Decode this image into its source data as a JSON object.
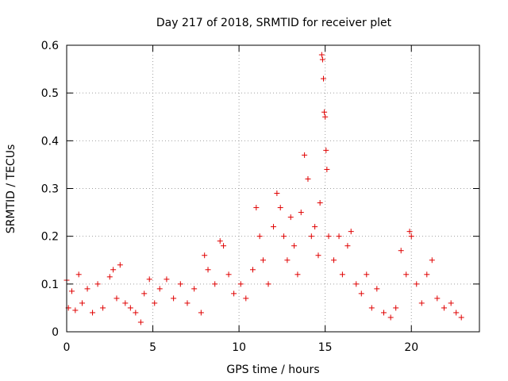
{
  "chart_data": {
    "type": "scatter",
    "title": "Day 217 of 2018, SRMTID for receiver plet",
    "xlabel": "GPS time / hours",
    "ylabel": "SRMTID / TECUs",
    "xlim": [
      0,
      23.95
    ],
    "ylim": [
      0,
      0.6
    ],
    "xticks": [
      0,
      5,
      10,
      15,
      20
    ],
    "yticks": [
      0,
      0.1,
      0.2,
      0.3,
      0.4,
      0.5,
      0.6
    ],
    "xtick_labels": [
      "0",
      "5",
      "10",
      "15",
      "20"
    ],
    "ytick_labels": [
      "0",
      "0.1",
      "0.2",
      "0.3",
      "0.4",
      "0.5",
      "0.6"
    ],
    "grid": true,
    "marker": "+",
    "color": "#e00000",
    "x_extent": [
      0,
      22.9
    ],
    "baseline_band": [
      0.02,
      0.1
    ],
    "active_period_hours": [
      8,
      16.5
    ],
    "secondary_peak_hours": [
      19.5,
      20.5
    ],
    "series": [
      {
        "name": "SRMTID",
        "points": [
          [
            0.0,
            0.108
          ],
          [
            0.1,
            0.05
          ],
          [
            0.3,
            0.085
          ],
          [
            0.5,
            0.045
          ],
          [
            0.7,
            0.12
          ],
          [
            0.9,
            0.06
          ],
          [
            1.2,
            0.09
          ],
          [
            1.5,
            0.04
          ],
          [
            1.8,
            0.1
          ],
          [
            2.1,
            0.05
          ],
          [
            2.5,
            0.115
          ],
          [
            2.7,
            0.13
          ],
          [
            2.9,
            0.07
          ],
          [
            3.1,
            0.14
          ],
          [
            3.4,
            0.06
          ],
          [
            3.7,
            0.05
          ],
          [
            4.0,
            0.04
          ],
          [
            4.3,
            0.02
          ],
          [
            4.5,
            0.08
          ],
          [
            4.8,
            0.11
          ],
          [
            5.1,
            0.06
          ],
          [
            5.4,
            0.09
          ],
          [
            5.8,
            0.11
          ],
          [
            6.2,
            0.07
          ],
          [
            6.6,
            0.1
          ],
          [
            7.0,
            0.06
          ],
          [
            7.4,
            0.09
          ],
          [
            7.8,
            0.04
          ],
          [
            8.0,
            0.16
          ],
          [
            8.2,
            0.13
          ],
          [
            8.6,
            0.1
          ],
          [
            8.9,
            0.19
          ],
          [
            9.1,
            0.18
          ],
          [
            9.4,
            0.12
          ],
          [
            9.7,
            0.08
          ],
          [
            10.1,
            0.1
          ],
          [
            10.4,
            0.07
          ],
          [
            10.8,
            0.13
          ],
          [
            11.0,
            0.26
          ],
          [
            11.2,
            0.2
          ],
          [
            11.4,
            0.15
          ],
          [
            11.7,
            0.1
          ],
          [
            12.0,
            0.22
          ],
          [
            12.2,
            0.29
          ],
          [
            12.4,
            0.26
          ],
          [
            12.6,
            0.2
          ],
          [
            12.8,
            0.15
          ],
          [
            13.0,
            0.24
          ],
          [
            13.2,
            0.18
          ],
          [
            13.4,
            0.12
          ],
          [
            13.6,
            0.25
          ],
          [
            13.8,
            0.37
          ],
          [
            14.0,
            0.32
          ],
          [
            14.2,
            0.2
          ],
          [
            14.4,
            0.22
          ],
          [
            14.6,
            0.16
          ],
          [
            14.7,
            0.27
          ],
          [
            14.8,
            0.58
          ],
          [
            14.85,
            0.57
          ],
          [
            14.9,
            0.53
          ],
          [
            14.95,
            0.46
          ],
          [
            15.0,
            0.45
          ],
          [
            15.05,
            0.38
          ],
          [
            15.1,
            0.34
          ],
          [
            15.2,
            0.2
          ],
          [
            15.5,
            0.15
          ],
          [
            15.8,
            0.2
          ],
          [
            16.0,
            0.12
          ],
          [
            16.3,
            0.18
          ],
          [
            16.5,
            0.21
          ],
          [
            16.8,
            0.1
          ],
          [
            17.1,
            0.08
          ],
          [
            17.4,
            0.12
          ],
          [
            17.7,
            0.05
          ],
          [
            18.0,
            0.09
          ],
          [
            18.4,
            0.04
          ],
          [
            18.8,
            0.03
          ],
          [
            19.1,
            0.05
          ],
          [
            19.4,
            0.17
          ],
          [
            19.7,
            0.12
          ],
          [
            19.9,
            0.21
          ],
          [
            20.0,
            0.2
          ],
          [
            20.3,
            0.1
          ],
          [
            20.6,
            0.06
          ],
          [
            20.9,
            0.12
          ],
          [
            21.2,
            0.15
          ],
          [
            21.5,
            0.07
          ],
          [
            21.9,
            0.05
          ],
          [
            22.3,
            0.06
          ],
          [
            22.6,
            0.04
          ],
          [
            22.9,
            0.03
          ]
        ]
      }
    ]
  }
}
